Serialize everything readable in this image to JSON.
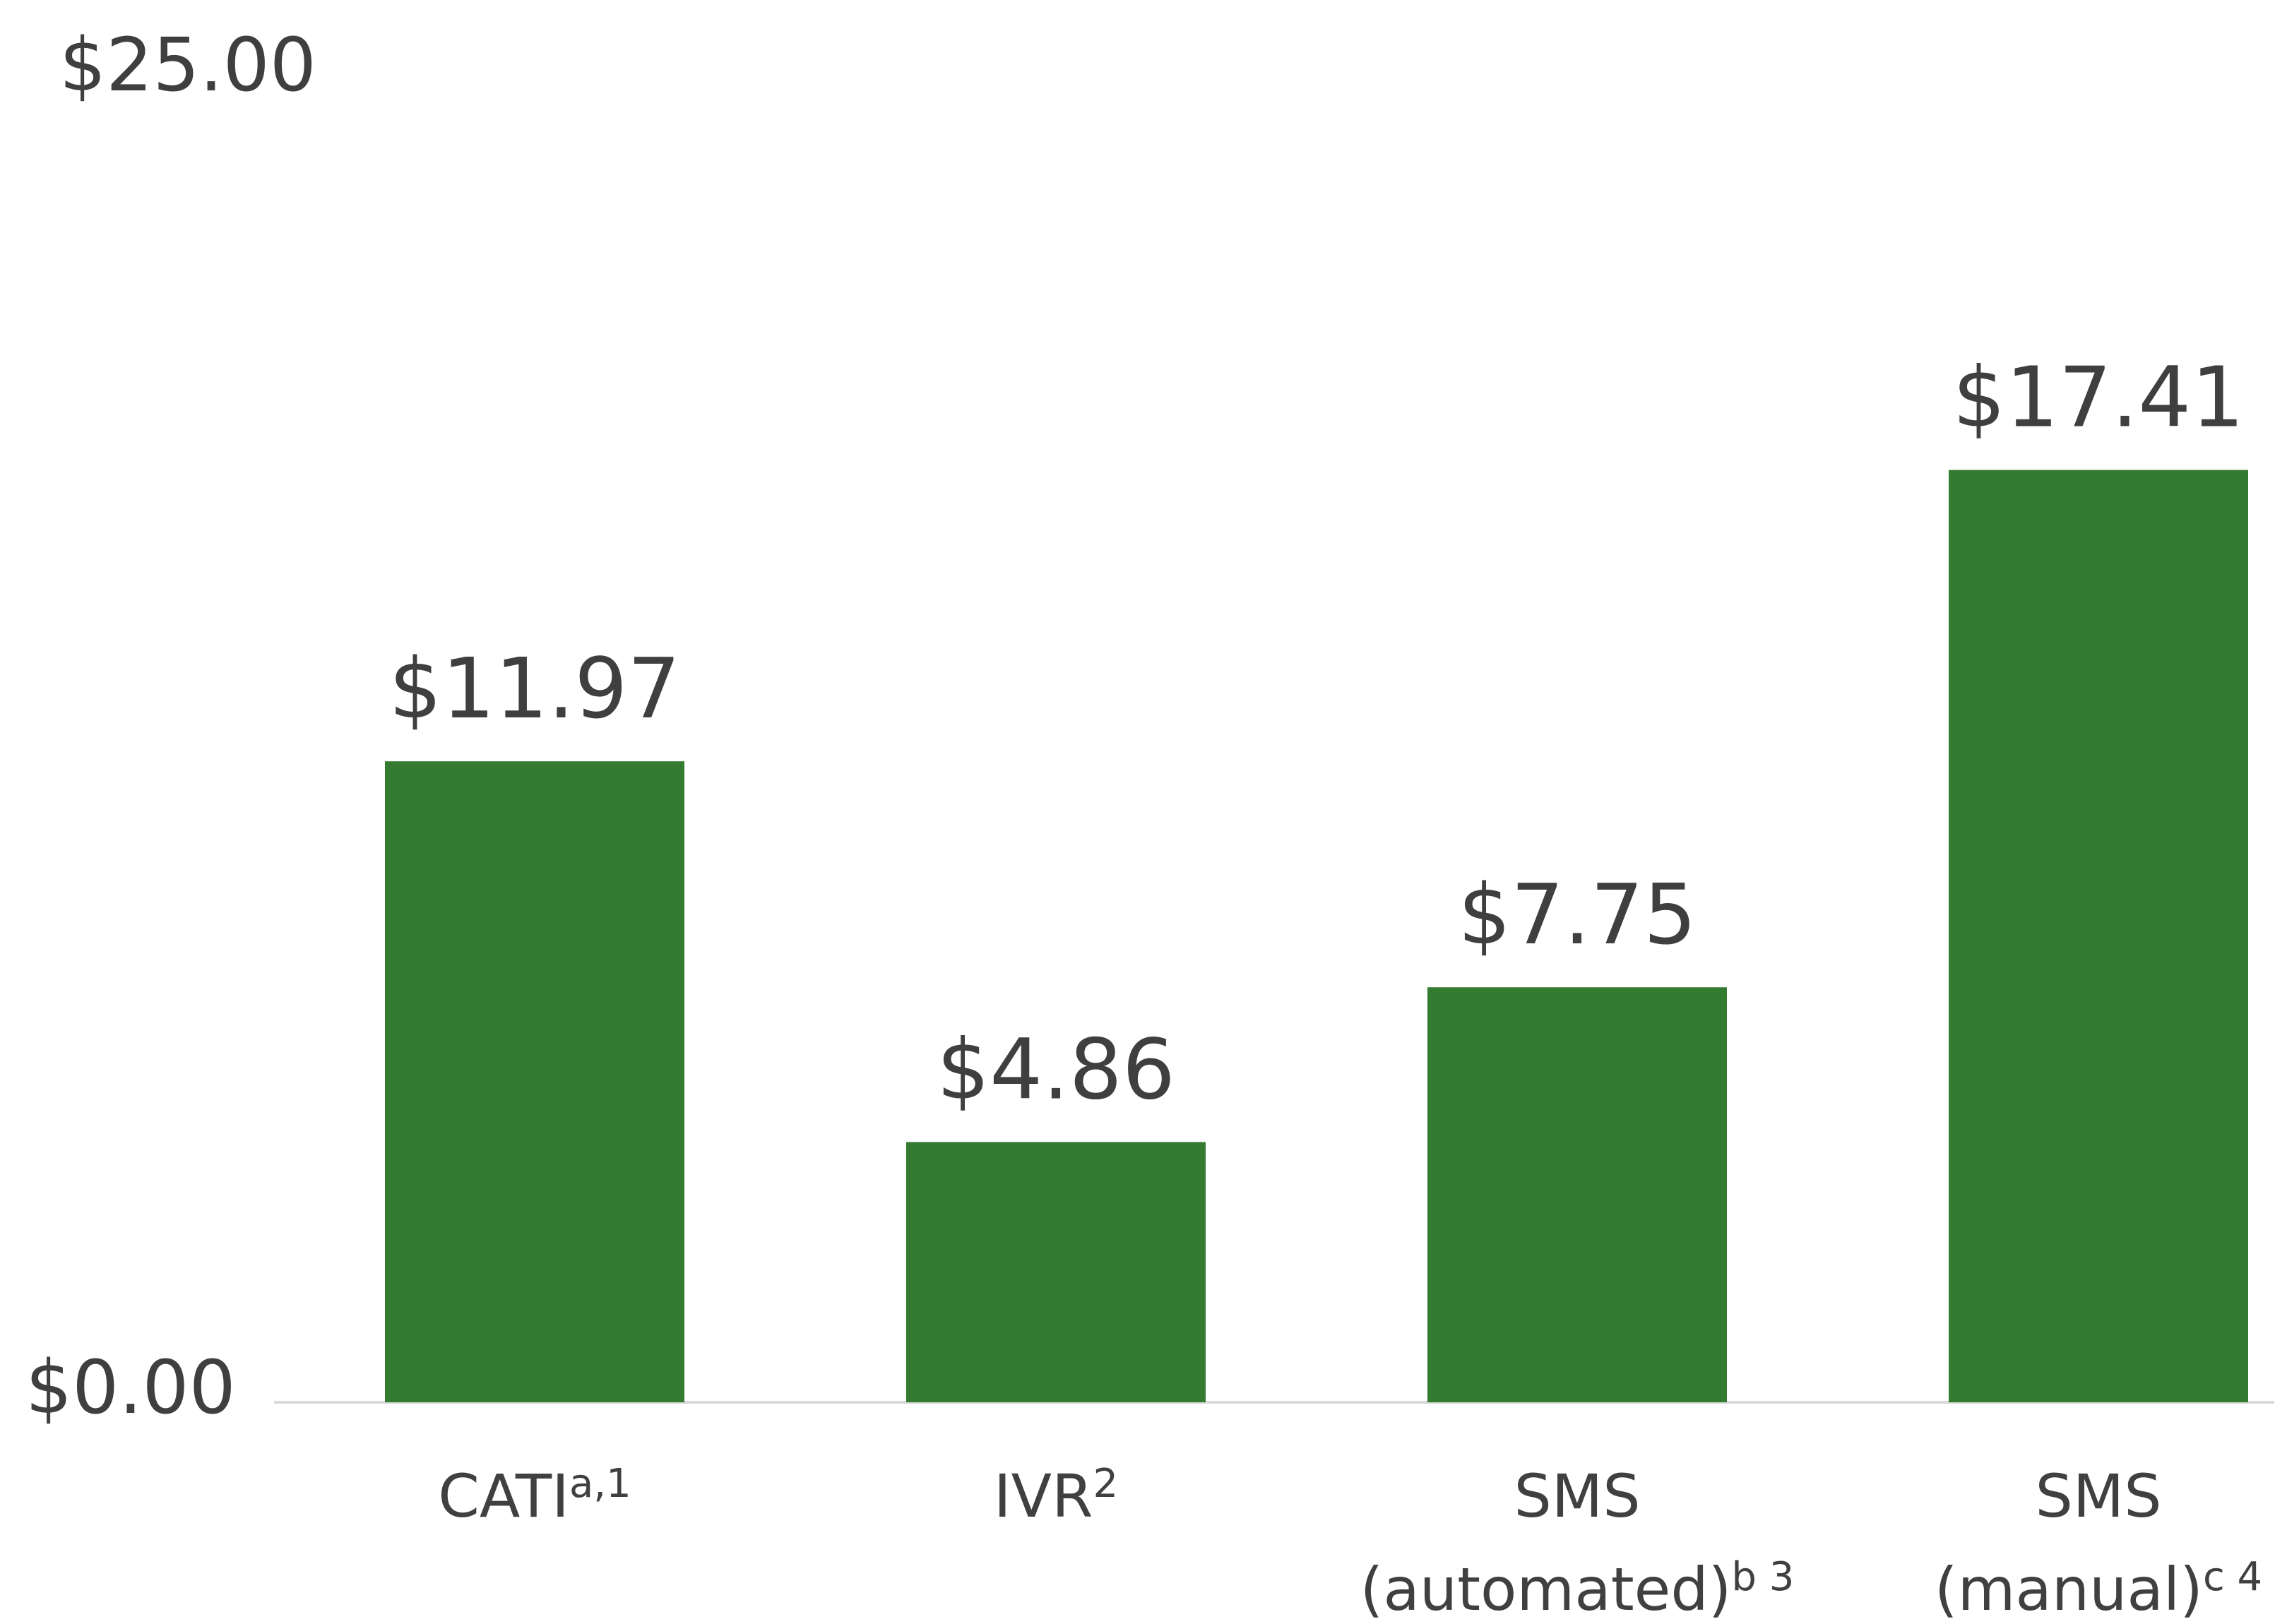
{
  "chart_data": {
    "type": "bar",
    "title": "",
    "xlabel": "",
    "ylabel": "",
    "ylim": [
      0,
      25
    ],
    "y_tick_labels": [
      "$0.00",
      "$25.00"
    ],
    "y_ticks": [
      0,
      25
    ],
    "grid": false,
    "legend": "none",
    "bar_color": "#357a31",
    "categories": [
      {
        "lines": [
          {
            "text": "CATI",
            "sup": "a,1"
          }
        ]
      },
      {
        "lines": [
          {
            "text": "IVR",
            "sup": "2"
          }
        ]
      },
      {
        "lines": [
          {
            "text": "SMS",
            "sup": ""
          },
          {
            "text": "(automated)",
            "sup": "b 3"
          }
        ]
      },
      {
        "lines": [
          {
            "text": "SMS",
            "sup": ""
          },
          {
            "text": "(manual)",
            "sup": "c 4"
          }
        ]
      }
    ],
    "values": [
      11.97,
      4.86,
      7.75,
      17.41
    ],
    "value_labels": [
      "$11.97",
      "$4.86",
      "$7.75",
      "$17.41"
    ]
  }
}
